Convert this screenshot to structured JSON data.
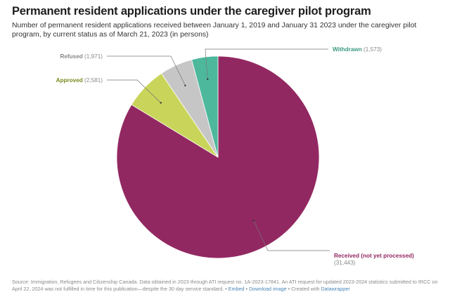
{
  "header": {
    "title": "Permanent resident applications under the caregiver pilot program",
    "subtitle": "Number of permanent resident applications received between January 1, 2019 and January 31 2023 under the caregiver pilot program, by current status as of March 21, 2023 (in persons)"
  },
  "chart_data": {
    "type": "pie",
    "title": "Permanent resident applications under the caregiver pilot program",
    "subtitle": "Number of permanent resident applications received between January 1, 2019 and January 31 2023 under the caregiver pilot program, by current status as of March 21, 2023 (in persons)",
    "start": "top, clockwise",
    "slices": [
      {
        "label": "Received (not yet processed)",
        "value": 31443,
        "value_label": "(31,443)",
        "color": "#922862",
        "label_color": "#922862"
      },
      {
        "label": "Approved",
        "value": 2581,
        "value_label": "(2,581)",
        "color": "#c9d55a",
        "label_color": "#7b8a1e"
      },
      {
        "label": "Refused",
        "value": 1971,
        "value_label": "(1,971)",
        "color": "#c6c6c6",
        "label_color": "#888888"
      },
      {
        "label": "Withdrawn",
        "value": 1573,
        "value_label": "(1,573)",
        "color": "#4db89c",
        "label_color": "#3c9a80"
      }
    ]
  },
  "footer": {
    "source": "Source: Immigration, Refugees and Citizenship Canada. Data obtained in 2023 through ATI request no. 1A-2023-17841. An ATI request for updated 2023-2024 statistics submitted to IRCC on April 22, 2024 was not fulfilled in time for this publication—despite the 30 day service standard.",
    "sep1": " • ",
    "embed": "Embed",
    "sep2": " • ",
    "download": "Download image",
    "sep3": " • Created with ",
    "datawrapper": "Datawrapper"
  }
}
